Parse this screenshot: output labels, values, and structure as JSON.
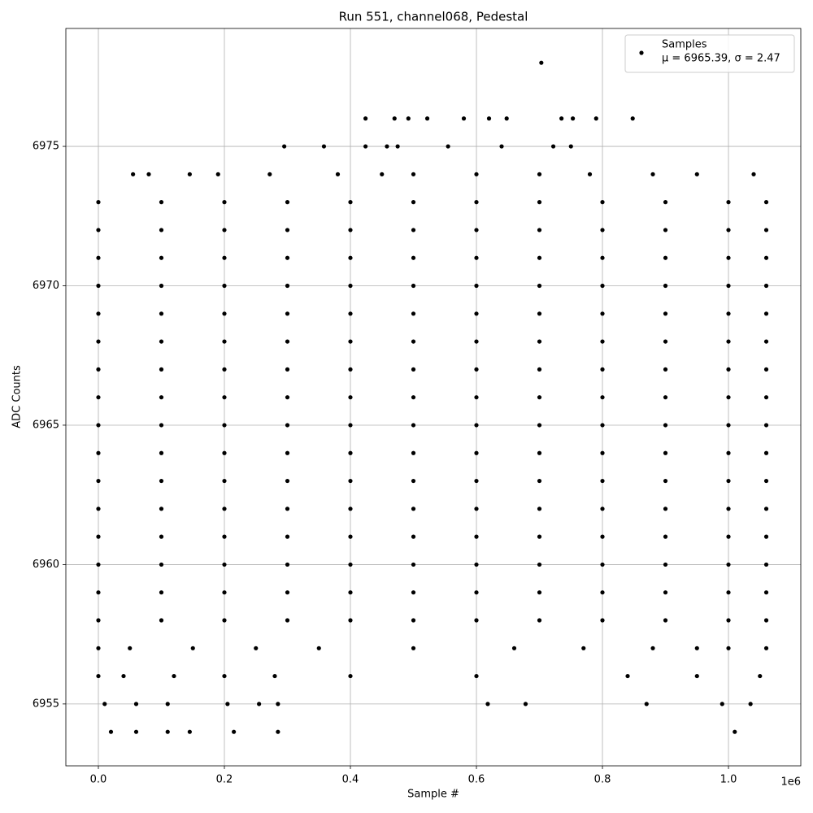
{
  "chart_data": {
    "type": "scatter",
    "title": "Run 551, channel068, Pedestal",
    "x_label": "Sample #",
    "y_label": "ADC Counts",
    "x_offset_label": "1e6",
    "legend_note": "μ = 6965.39, σ = 2.47",
    "legend": "upper right",
    "grid": true,
    "xlim": [
      -51600,
      1114800
    ],
    "ylim": [
      6952.78,
      6979.23
    ],
    "xticks": [
      {
        "value": 0,
        "label": "0.0"
      },
      {
        "value": 200000,
        "label": "0.2"
      },
      {
        "value": 400000,
        "label": "0.4"
      },
      {
        "value": 600000,
        "label": "0.6"
      },
      {
        "value": 800000,
        "label": "0.8"
      },
      {
        "value": 1000000,
        "label": "1.0"
      }
    ],
    "yticks": [
      6955,
      6960,
      6965,
      6970,
      6975
    ],
    "x": [
      703000,
      424000,
      470000,
      492000,
      522000,
      580000,
      620000,
      648000,
      735000,
      753000,
      790000,
      848000,
      295000,
      358000,
      424000,
      458000,
      475000,
      555000,
      640000,
      722000,
      750000,
      55000,
      80000,
      145000,
      190000,
      272000,
      380000,
      450000,
      500000,
      600000,
      700000,
      780000,
      880000,
      950000,
      1040000,
      0,
      100000,
      200000,
      300000,
      400000,
      500000,
      600000,
      700000,
      800000,
      900000,
      1000000,
      1060000,
      0,
      100000,
      200000,
      300000,
      400000,
      500000,
      600000,
      700000,
      800000,
      900000,
      1000000,
      1060000,
      0,
      100000,
      200000,
      300000,
      400000,
      500000,
      600000,
      700000,
      800000,
      900000,
      1000000,
      1060000,
      0,
      100000,
      200000,
      300000,
      400000,
      500000,
      600000,
      700000,
      800000,
      900000,
      1000000,
      1060000,
      0,
      100000,
      200000,
      300000,
      400000,
      500000,
      600000,
      700000,
      800000,
      900000,
      1000000,
      1060000,
      0,
      100000,
      200000,
      300000,
      400000,
      500000,
      600000,
      700000,
      800000,
      900000,
      1000000,
      1060000,
      0,
      100000,
      200000,
      300000,
      400000,
      500000,
      600000,
      700000,
      800000,
      900000,
      1000000,
      1060000,
      0,
      100000,
      200000,
      300000,
      400000,
      500000,
      600000,
      700000,
      800000,
      900000,
      1000000,
      1060000,
      0,
      100000,
      200000,
      300000,
      400000,
      500000,
      600000,
      700000,
      800000,
      900000,
      1000000,
      1060000,
      0,
      100000,
      200000,
      300000,
      400000,
      500000,
      600000,
      700000,
      800000,
      900000,
      1000000,
      1060000,
      0,
      100000,
      200000,
      300000,
      400000,
      500000,
      600000,
      700000,
      800000,
      900000,
      1000000,
      1060000,
      0,
      100000,
      200000,
      300000,
      400000,
      500000,
      600000,
      700000,
      800000,
      900000,
      1000000,
      1060000,
      0,
      100000,
      200000,
      300000,
      400000,
      500000,
      600000,
      700000,
      800000,
      900000,
      1000000,
      1060000,
      0,
      100000,
      200000,
      300000,
      400000,
      500000,
      600000,
      700000,
      800000,
      900000,
      1000000,
      1060000,
      0,
      100000,
      200000,
      300000,
      400000,
      500000,
      600000,
      700000,
      800000,
      900000,
      1000000,
      1060000,
      0,
      100000,
      200000,
      300000,
      400000,
      500000,
      600000,
      700000,
      800000,
      900000,
      1000000,
      1060000,
      0,
      50000,
      150000,
      250000,
      350000,
      500000,
      660000,
      770000,
      880000,
      950000,
      1000000,
      1060000,
      0,
      40000,
      120000,
      200000,
      280000,
      400000,
      600000,
      840000,
      950000,
      1050000,
      10000,
      60000,
      110000,
      205000,
      255000,
      285000,
      618000,
      678000,
      870000,
      990000,
      1035000,
      20000,
      60000,
      110000,
      145000,
      215000,
      285000,
      1010000
    ],
    "series": [
      {
        "name": "Samples",
        "color": "#000000",
        "values": [
          6978,
          6976,
          6976,
          6976,
          6976,
          6976,
          6976,
          6976,
          6976,
          6976,
          6976,
          6976,
          6975,
          6975,
          6975,
          6975,
          6975,
          6975,
          6975,
          6975,
          6975,
          6974,
          6974,
          6974,
          6974,
          6974,
          6974,
          6974,
          6974,
          6974,
          6974,
          6974,
          6974,
          6974,
          6974,
          6973,
          6973,
          6973,
          6973,
          6973,
          6973,
          6973,
          6973,
          6973,
          6973,
          6973,
          6973,
          6972,
          6972,
          6972,
          6972,
          6972,
          6972,
          6972,
          6972,
          6972,
          6972,
          6972,
          6972,
          6971,
          6971,
          6971,
          6971,
          6971,
          6971,
          6971,
          6971,
          6971,
          6971,
          6971,
          6971,
          6970,
          6970,
          6970,
          6970,
          6970,
          6970,
          6970,
          6970,
          6970,
          6970,
          6970,
          6970,
          6969,
          6969,
          6969,
          6969,
          6969,
          6969,
          6969,
          6969,
          6969,
          6969,
          6969,
          6969,
          6968,
          6968,
          6968,
          6968,
          6968,
          6968,
          6968,
          6968,
          6968,
          6968,
          6968,
          6968,
          6967,
          6967,
          6967,
          6967,
          6967,
          6967,
          6967,
          6967,
          6967,
          6967,
          6967,
          6967,
          6966,
          6966,
          6966,
          6966,
          6966,
          6966,
          6966,
          6966,
          6966,
          6966,
          6966,
          6966,
          6965,
          6965,
          6965,
          6965,
          6965,
          6965,
          6965,
          6965,
          6965,
          6965,
          6965,
          6965,
          6964,
          6964,
          6964,
          6964,
          6964,
          6964,
          6964,
          6964,
          6964,
          6964,
          6964,
          6964,
          6963,
          6963,
          6963,
          6963,
          6963,
          6963,
          6963,
          6963,
          6963,
          6963,
          6963,
          6963,
          6962,
          6962,
          6962,
          6962,
          6962,
          6962,
          6962,
          6962,
          6962,
          6962,
          6962,
          6962,
          6961,
          6961,
          6961,
          6961,
          6961,
          6961,
          6961,
          6961,
          6961,
          6961,
          6961,
          6961,
          6960,
          6960,
          6960,
          6960,
          6960,
          6960,
          6960,
          6960,
          6960,
          6960,
          6960,
          6960,
          6959,
          6959,
          6959,
          6959,
          6959,
          6959,
          6959,
          6959,
          6959,
          6959,
          6959,
          6959,
          6958,
          6958,
          6958,
          6958,
          6958,
          6958,
          6958,
          6958,
          6958,
          6958,
          6958,
          6958,
          6957,
          6957,
          6957,
          6957,
          6957,
          6957,
          6957,
          6957,
          6957,
          6957,
          6957,
          6957,
          6956,
          6956,
          6956,
          6956,
          6956,
          6956,
          6956,
          6956,
          6956,
          6956,
          6955,
          6955,
          6955,
          6955,
          6955,
          6955,
          6955,
          6955,
          6955,
          6955,
          6955,
          6954,
          6954,
          6954,
          6954,
          6954,
          6954,
          6954
        ]
      }
    ]
  }
}
